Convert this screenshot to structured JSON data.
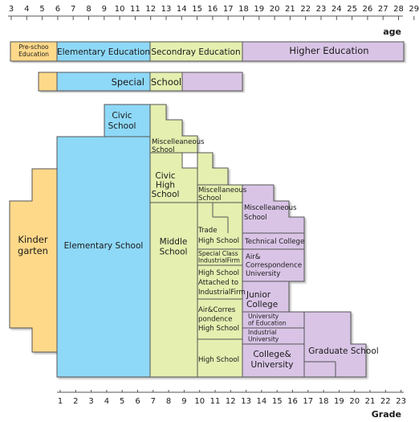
{
  "axes": {
    "age_ticks": [
      "3",
      "4",
      "5",
      "6",
      "7",
      "8",
      "9",
      "10",
      "11",
      "12",
      "13",
      "14",
      "15",
      "16",
      "17",
      "18",
      "19",
      "20",
      "21",
      "22",
      "23",
      "24",
      "25",
      "26",
      "27",
      "28",
      "29"
    ],
    "age_title": "age",
    "grade_ticks": [
      "1",
      "2",
      "3",
      "4",
      "5",
      "6",
      "7",
      "8",
      "9",
      "10",
      "11",
      "12",
      "13",
      "14",
      "15",
      "16",
      "17",
      "18",
      "19",
      "20",
      "21",
      "22",
      "23"
    ],
    "grade_title": "Grade"
  },
  "stages": {
    "preschool": "Pre-schoo\nEducation",
    "elementary": "Elementary Education",
    "secondary": "Secondray Education",
    "higher": "Higher Education"
  },
  "special": {
    "left": "Special",
    "right": "School"
  },
  "schools": {
    "civic_school": "Civic\nSchool",
    "kindergarten": "Kinder\ngarten",
    "elementary_school": "Elementary School",
    "misc_school_1": "Miscelleaneous\nSchool",
    "civic_high": "Civic\nHigh\nSchool",
    "middle_school": "Middle\nSchool",
    "misc_school_2": "Miscellaneous\nSchool",
    "trade_high": "Trade\nHigh School",
    "special_class": "Special Class\nIndustrialFirm",
    "high_school_attached": "High School\nAttached to\nIndustrialFirm",
    "air_corr_high": "Air&Corres\npondence\nHigh School",
    "high_school": "High School",
    "misc_school_3": "Miscelleaneous\nSchool",
    "technical_college": "Technical College",
    "air_corr_univ": "Air&\nCorrespondence\nUniversity",
    "junior_college": "Junior\nCollege",
    "univ_education": "University\nof Education",
    "industrial_univ": "Industrial\nUniversity",
    "college_univ": "College&\nUniversity",
    "graduate_school": "Graduate School"
  },
  "colors": {
    "preschool": "#ffd98a",
    "elementary": "#8ed8f8",
    "secondary": "#e4efb0",
    "higher": "#d9c4e6",
    "outline": "#555555"
  }
}
